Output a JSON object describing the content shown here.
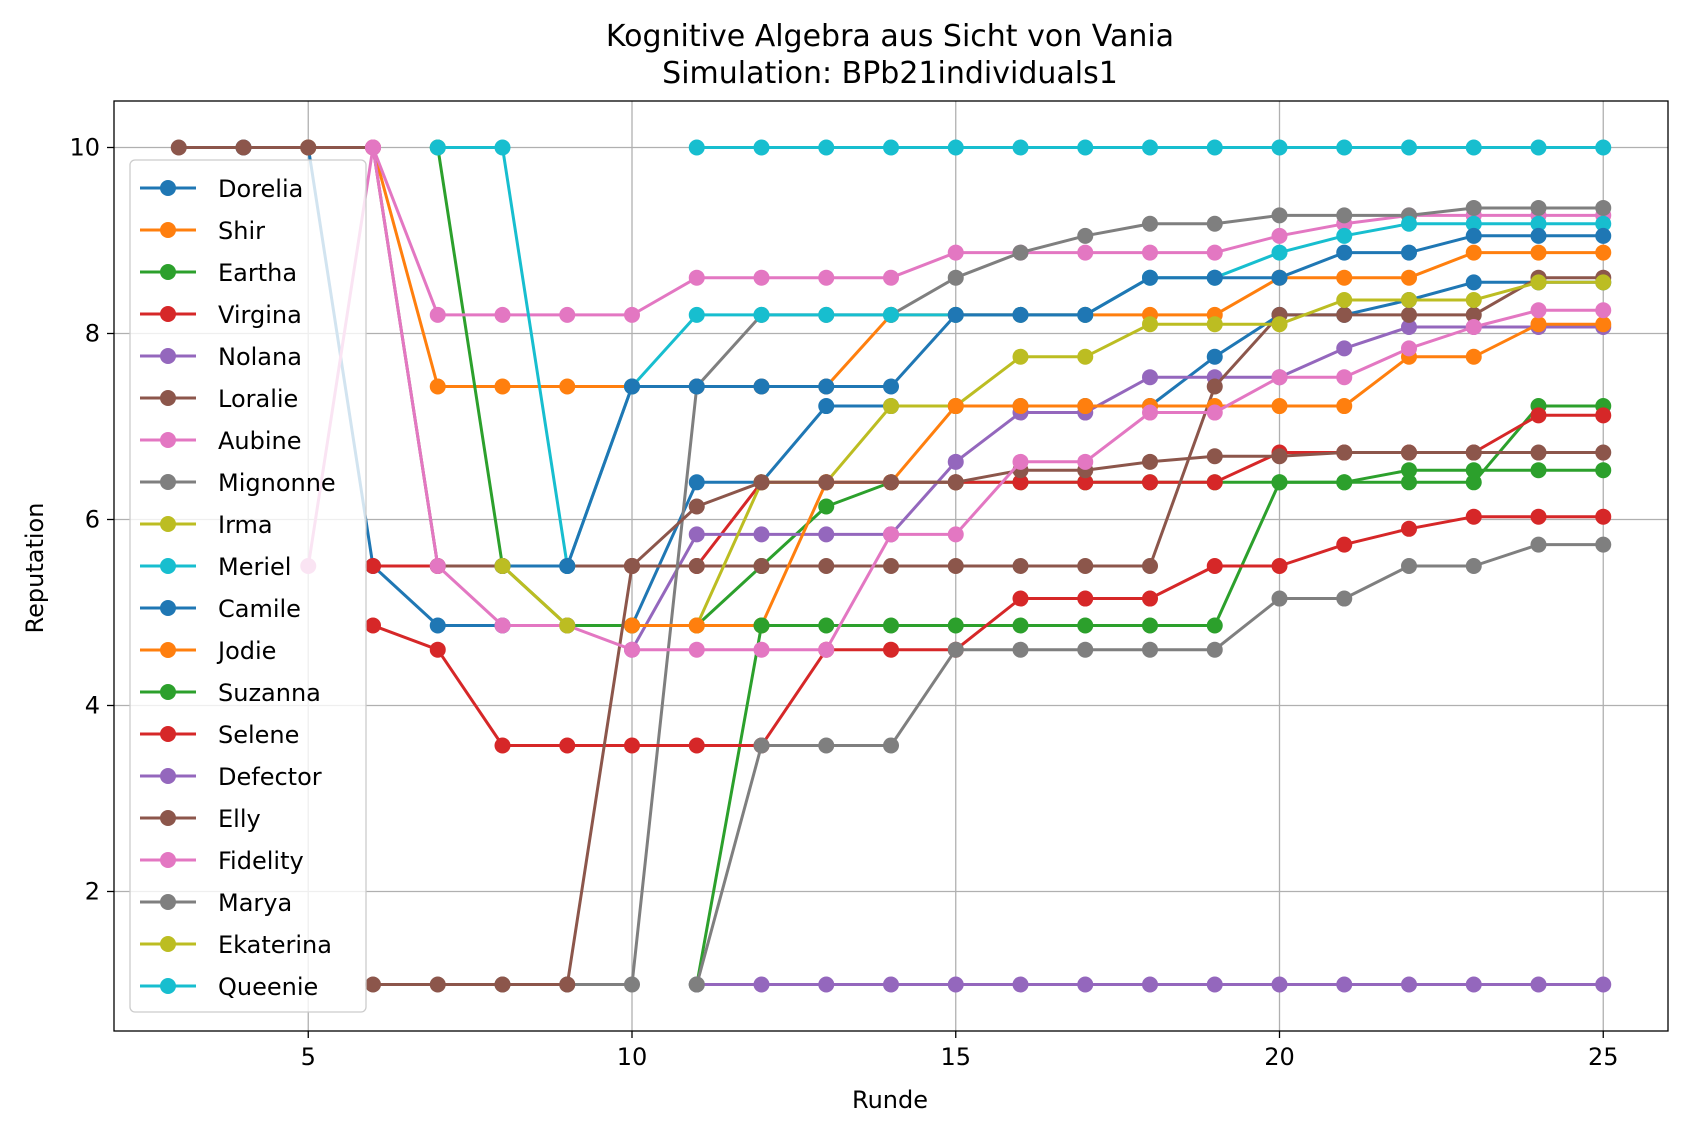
{
  "chart_data": {
    "type": "line",
    "title": "Kognitive Algebra aus Sicht von Vania",
    "subtitle": "Simulation: BPb21individuals1",
    "xlabel": "Runde",
    "ylabel": "Reputation",
    "xlim": [
      2,
      26
    ],
    "ylim": [
      0.5,
      10.5
    ],
    "xticks": [
      5,
      10,
      15,
      20,
      25
    ],
    "yticks": [
      2,
      4,
      6,
      8,
      10
    ],
    "grid": true,
    "legend_position": "left",
    "series": [
      {
        "name": "Dorelia",
        "color": "#1f77b4",
        "x": [
          4,
          5,
          6,
          7,
          8,
          9,
          10,
          11,
          12,
          13,
          14,
          15,
          16,
          17,
          18,
          19,
          20,
          21,
          22,
          23,
          24,
          25
        ],
        "values": [
          10,
          10,
          5.5,
          4.86,
          4.86,
          4.86,
          4.86,
          6.4,
          6.4,
          7.22,
          7.22,
          7.22,
          7.22,
          7.22,
          7.22,
          7.75,
          8.2,
          8.2,
          8.36,
          8.55,
          8.55,
          8.55
        ]
      },
      {
        "name": "Shir",
        "color": "#ff7f0e",
        "x": [
          5,
          6,
          7,
          8,
          9,
          10,
          11,
          12,
          13,
          14,
          15,
          16,
          17,
          18,
          19,
          20,
          21,
          22,
          23,
          24,
          25
        ],
        "values": [
          10,
          10,
          7.43,
          7.43,
          7.43,
          7.43,
          7.43,
          7.43,
          7.43,
          8.2,
          8.2,
          8.2,
          8.2,
          8.2,
          8.2,
          8.6,
          8.6,
          8.6,
          8.87,
          8.87,
          8.87
        ]
      },
      {
        "name": "Eartha",
        "color": "#2ca02c",
        "x": [
          7,
          8,
          9,
          10,
          11,
          12,
          13,
          14,
          15,
          16,
          17,
          18,
          19,
          20,
          21,
          22,
          23,
          24,
          25
        ],
        "values": [
          10,
          5.5,
          4.86,
          4.86,
          4.86,
          5.5,
          6.14,
          6.4,
          6.4,
          6.4,
          6.4,
          6.4,
          6.4,
          6.4,
          6.4,
          6.4,
          6.4,
          7.22,
          7.22
        ]
      },
      {
        "name": "Virgina",
        "color": "#d62728",
        "x": [
          6,
          7,
          8,
          9,
          10,
          11,
          12,
          13,
          14,
          15,
          16,
          17,
          18,
          19,
          20,
          21,
          22,
          23,
          24,
          25
        ],
        "values": [
          5.5,
          5.5,
          5.5,
          5.5,
          5.5,
          5.5,
          6.4,
          6.4,
          6.4,
          6.4,
          6.4,
          6.4,
          6.4,
          6.4,
          6.72,
          6.72,
          6.72,
          6.72,
          7.12,
          7.12
        ]
      },
      {
        "name": "Nolana",
        "color": "#9467bd",
        "x": [
          10,
          11,
          12,
          13,
          14,
          15,
          16,
          17,
          18,
          19,
          20,
          21,
          22,
          23,
          24,
          25
        ],
        "values": [
          4.6,
          5.84,
          5.84,
          5.84,
          5.84,
          6.62,
          7.15,
          7.15,
          7.53,
          7.53,
          7.53,
          7.84,
          8.07,
          8.07,
          8.07,
          8.07
        ]
      },
      {
        "name": "Loralie",
        "color": "#8c564b",
        "x": [
          3,
          4,
          5,
          6,
          7,
          8,
          9,
          10,
          11,
          12,
          13,
          14,
          15,
          16,
          17,
          18,
          19,
          20,
          21,
          22,
          23,
          24,
          25
        ],
        "values": [
          10,
          10,
          10,
          10,
          5.5,
          5.5,
          5.5,
          5.5,
          5.5,
          5.5,
          5.5,
          5.5,
          5.5,
          5.5,
          5.5,
          5.5,
          7.43,
          8.2,
          8.2,
          8.2,
          8.2,
          8.6,
          8.6
        ]
      },
      {
        "name": "Aubine",
        "color": "#e377c2",
        "x": [
          6,
          7,
          8,
          9,
          10,
          11,
          12,
          13,
          14,
          15,
          16,
          17,
          18,
          19,
          20,
          21,
          22,
          23,
          24,
          25
        ],
        "values": [
          10,
          8.2,
          8.2,
          8.2,
          8.2,
          8.6,
          8.6,
          8.6,
          8.6,
          8.87,
          8.87,
          8.87,
          8.87,
          8.87,
          9.05,
          9.18,
          9.27,
          9.27,
          9.27,
          9.27
        ]
      },
      {
        "name": "Mignonne",
        "color": "#7f7f7f",
        "x": [
          8,
          9,
          10,
          11,
          12,
          13,
          14,
          15,
          16,
          17,
          18,
          19,
          20,
          21,
          22,
          23,
          24,
          25
        ],
        "values": [
          1,
          1,
          1,
          7.43,
          8.2,
          8.2,
          8.2,
          8.6,
          8.87,
          9.05,
          9.18,
          9.18,
          9.27,
          9.27,
          9.27,
          9.35,
          9.35,
          9.35
        ]
      },
      {
        "name": "Irma",
        "color": "#bcbd22",
        "x": [
          11,
          12,
          13,
          14,
          15,
          16,
          17,
          18,
          19,
          20,
          21,
          22,
          23,
          24,
          25
        ],
        "values": [
          4.86,
          6.4,
          6.4,
          7.22,
          7.22,
          7.75,
          7.75,
          8.1,
          8.1,
          8.1,
          8.36,
          8.36,
          8.36,
          8.55,
          8.55
        ]
      },
      {
        "name": "Meriel",
        "color": "#17becf",
        "x": [
          7,
          8,
          9,
          10,
          11,
          12,
          13,
          14,
          15,
          16,
          17,
          18,
          19,
          20,
          21,
          22,
          23,
          24,
          25
        ],
        "values": [
          10,
          10,
          5.5,
          7.43,
          8.2,
          8.2,
          8.2,
          8.2,
          8.2,
          8.2,
          8.2,
          8.6,
          8.6,
          8.87,
          9.05,
          9.18,
          9.18,
          9.18,
          9.18
        ]
      },
      {
        "name": "Camile",
        "color": "#1f77b4",
        "x": [
          8,
          9,
          10,
          11,
          12,
          13,
          14,
          15,
          16,
          17,
          18,
          19,
          20,
          21,
          22,
          23,
          24,
          25
        ],
        "values": [
          5.5,
          5.5,
          7.43,
          7.43,
          7.43,
          7.43,
          7.43,
          8.2,
          8.2,
          8.2,
          8.6,
          8.6,
          8.6,
          8.87,
          8.87,
          9.05,
          9.05,
          9.05
        ]
      },
      {
        "name": "Jodie",
        "color": "#ff7f0e",
        "x": [
          10,
          11,
          12,
          13,
          14,
          15,
          16,
          17,
          18,
          19,
          20,
          21,
          22,
          23,
          24,
          25
        ],
        "values": [
          4.86,
          4.86,
          4.86,
          6.4,
          6.4,
          7.22,
          7.22,
          7.22,
          7.22,
          7.22,
          7.22,
          7.22,
          7.75,
          7.75,
          8.1,
          8.1
        ]
      },
      {
        "name": "Suzanna",
        "color": "#2ca02c",
        "x": [
          11,
          12,
          13,
          14,
          15,
          16,
          17,
          18,
          19,
          20,
          21,
          22,
          23,
          24,
          25
        ],
        "values": [
          1,
          4.86,
          4.86,
          4.86,
          4.86,
          4.86,
          4.86,
          4.86,
          4.86,
          6.4,
          6.4,
          6.53,
          6.53,
          6.53,
          6.53
        ]
      },
      {
        "name": "Selene",
        "color": "#d62728",
        "x": [
          6,
          7,
          8,
          9,
          10,
          11,
          12,
          13,
          14,
          15,
          16,
          17,
          18,
          19,
          20,
          21,
          22,
          23,
          24,
          25
        ],
        "values": [
          4.86,
          4.6,
          3.57,
          3.57,
          3.57,
          3.57,
          3.57,
          4.6,
          4.6,
          4.6,
          5.15,
          5.15,
          5.15,
          5.5,
          5.5,
          5.73,
          5.9,
          6.03,
          6.03,
          6.03
        ]
      },
      {
        "name": "Defector",
        "color": "#9467bd",
        "x": [
          11,
          12,
          13,
          14,
          15,
          16,
          17,
          18,
          19,
          20,
          21,
          22,
          23,
          24,
          25
        ],
        "values": [
          1,
          1,
          1,
          1,
          1,
          1,
          1,
          1,
          1,
          1,
          1,
          1,
          1,
          1,
          1
        ]
      },
      {
        "name": "Elly",
        "color": "#8c564b",
        "x": [
          6,
          7,
          8,
          9,
          10,
          11,
          12,
          13,
          14,
          15,
          16,
          17,
          18,
          19,
          20,
          21,
          22,
          23,
          24,
          25
        ],
        "values": [
          1,
          1,
          1,
          1,
          5.5,
          6.14,
          6.4,
          6.4,
          6.4,
          6.4,
          6.53,
          6.53,
          6.62,
          6.68,
          6.68,
          6.72,
          6.72,
          6.72,
          6.72,
          6.72
        ]
      },
      {
        "name": "Fidelity",
        "color": "#e377c2",
        "x": [
          5,
          6,
          7,
          8,
          9,
          10,
          11,
          12,
          13,
          14,
          15,
          16,
          17,
          18,
          19,
          20,
          21,
          22,
          23,
          24,
          25
        ],
        "values": [
          5.5,
          10,
          5.5,
          4.86,
          4.86,
          4.6,
          4.6,
          4.6,
          4.6,
          5.84,
          5.84,
          6.62,
          6.62,
          7.15,
          7.15,
          7.53,
          7.53,
          7.84,
          8.07,
          8.25,
          8.25
        ]
      },
      {
        "name": "Marya",
        "color": "#7f7f7f",
        "x": [
          11,
          12,
          13,
          14,
          15,
          16,
          17,
          18,
          19,
          20,
          21,
          22,
          23,
          24,
          25
        ],
        "values": [
          1,
          3.57,
          3.57,
          3.57,
          4.6,
          4.6,
          4.6,
          4.6,
          4.6,
          5.15,
          5.15,
          5.5,
          5.5,
          5.73,
          5.73
        ]
      },
      {
        "name": "Ekaterina",
        "color": "#bcbd22",
        "x": [
          8,
          9
        ],
        "values": [
          5.5,
          4.86
        ]
      },
      {
        "name": "Queenie",
        "color": "#17becf",
        "x": [
          11,
          12,
          13,
          14,
          15,
          16,
          17,
          18,
          19,
          20,
          21,
          22,
          23,
          24,
          25
        ],
        "values": [
          10,
          10,
          10,
          10,
          10,
          10,
          10,
          10,
          10,
          10,
          10,
          10,
          10,
          10,
          10
        ]
      }
    ]
  }
}
